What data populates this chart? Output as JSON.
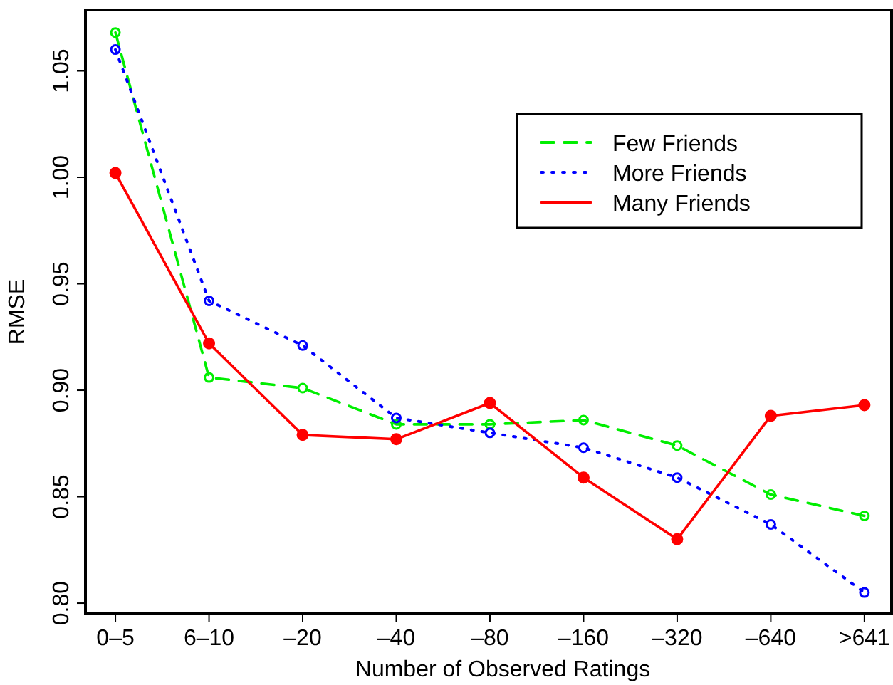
{
  "chart_data": {
    "type": "line",
    "xlabel": "Number of Observed Ratings",
    "ylabel": "RMSE",
    "categories": [
      "0–5",
      "6–10",
      "–20",
      "–40",
      "–80",
      "–160",
      "–320",
      "–640",
      ">641"
    ],
    "series": [
      {
        "name": "Few Friends",
        "color": "#00ee00",
        "line_style": "dashed",
        "values": [
          1.068,
          0.906,
          0.901,
          0.884,
          0.884,
          0.886,
          0.874,
          0.851,
          0.841
        ]
      },
      {
        "name": "More Friends",
        "color": "#0000ff",
        "line_style": "dotted",
        "values": [
          1.06,
          0.942,
          0.921,
          0.887,
          0.88,
          0.873,
          0.859,
          0.837,
          0.805
        ]
      },
      {
        "name": "Many Friends",
        "color": "#ff0000",
        "line_style": "solid",
        "values": [
          1.002,
          0.922,
          0.879,
          0.877,
          0.894,
          0.859,
          0.83,
          0.888,
          0.893
        ]
      }
    ],
    "ylim": [
      0.795,
      1.0786
    ],
    "yticks": [
      {
        "value": 0.8,
        "label": "0.80"
      },
      0.85,
      {
        "value": 0.9,
        "label": "0.90"
      },
      0.95,
      {
        "value": 1,
        "label": "1.00"
      },
      1.05
    ],
    "marker": "circle",
    "legend": "top right",
    "grid": false
  }
}
